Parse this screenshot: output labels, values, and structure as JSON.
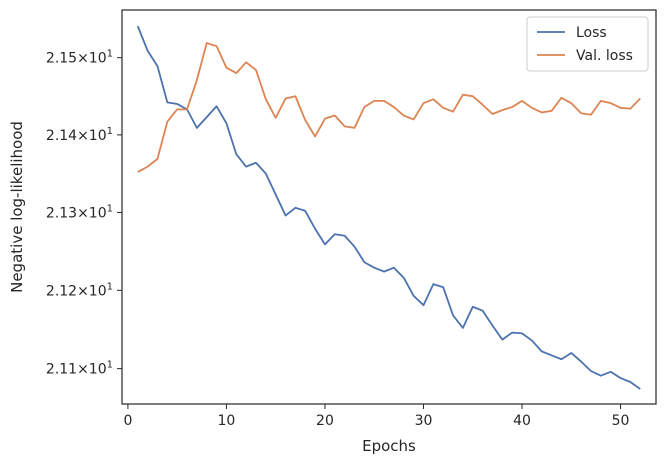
{
  "chart_data": {
    "type": "line",
    "xlabel": "Epochs",
    "ylabel": "Negative log-likelihood",
    "xlim": [
      -0.6,
      53.6
    ],
    "ylim": [
      21.055,
      21.562
    ],
    "y_scale": "log",
    "xticks": [
      0,
      10,
      20,
      30,
      40,
      50
    ],
    "xtick_labels": [
      "0",
      "10",
      "20",
      "30",
      "40",
      "50"
    ],
    "yticks": [
      {
        "value": 21.1,
        "mantissa": "2.11",
        "exp": "1"
      },
      {
        "value": 21.2,
        "mantissa": "2.12",
        "exp": "1"
      },
      {
        "value": 21.3,
        "mantissa": "2.13",
        "exp": "1"
      },
      {
        "value": 21.4,
        "mantissa": "2.14",
        "exp": "1"
      },
      {
        "value": 21.5,
        "mantissa": "2.15",
        "exp": "1"
      }
    ],
    "grid": false,
    "legend": "top-right",
    "x": [
      1,
      2,
      3,
      4,
      5,
      6,
      7,
      8,
      9,
      10,
      11,
      12,
      13,
      14,
      15,
      16,
      17,
      18,
      19,
      20,
      21,
      22,
      23,
      24,
      25,
      26,
      27,
      28,
      29,
      30,
      31,
      32,
      33,
      34,
      35,
      36,
      37,
      38,
      39,
      40,
      41,
      42,
      43,
      44,
      45,
      46,
      47,
      48,
      49,
      50,
      51,
      52
    ],
    "series": [
      {
        "name": "Loss",
        "color": "#4c72b0",
        "values": [
          21.541,
          21.509,
          21.489,
          21.442,
          21.44,
          21.433,
          21.409,
          21.423,
          21.437,
          21.415,
          21.375,
          21.359,
          21.364,
          21.35,
          21.323,
          21.296,
          21.306,
          21.302,
          21.279,
          21.259,
          21.272,
          21.27,
          21.256,
          21.236,
          21.229,
          21.224,
          21.229,
          21.216,
          21.193,
          21.181,
          21.208,
          21.204,
          21.168,
          21.152,
          21.179,
          21.174,
          21.155,
          21.137,
          21.146,
          21.145,
          21.136,
          21.122,
          21.117,
          21.112,
          21.12,
          21.109,
          21.097,
          21.091,
          21.096,
          21.088,
          21.083,
          21.074
        ]
      },
      {
        "name": "Val. loss",
        "color": "#dd8452",
        "values": [
          21.352,
          21.359,
          21.369,
          21.417,
          21.433,
          21.433,
          21.471,
          21.519,
          21.515,
          21.487,
          21.48,
          21.494,
          21.484,
          21.446,
          21.422,
          21.447,
          21.45,
          21.419,
          21.398,
          21.421,
          21.425,
          21.411,
          21.409,
          21.436,
          21.444,
          21.444,
          21.436,
          21.425,
          21.42,
          21.441,
          21.446,
          21.435,
          21.43,
          21.452,
          21.45,
          21.439,
          21.427,
          21.432,
          21.436,
          21.444,
          21.435,
          21.429,
          21.431,
          21.448,
          21.441,
          21.428,
          21.426,
          21.444,
          21.441,
          21.435,
          21.434,
          21.447
        ]
      }
    ]
  }
}
